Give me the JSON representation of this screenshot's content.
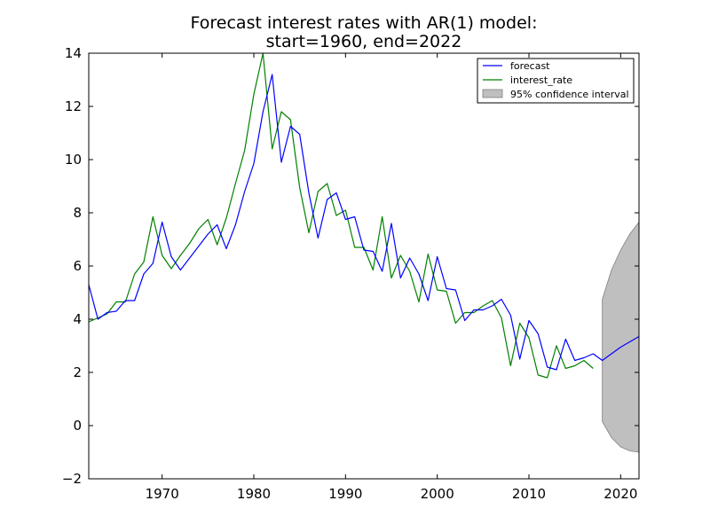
{
  "chart_data": {
    "type": "line",
    "title_lines": [
      "Forecast interest rates with AR(1) model:",
      "start=1960, end=2022"
    ],
    "xlabel": "",
    "ylabel": "",
    "xlim": [
      1962,
      2022
    ],
    "ylim": [
      -2,
      14
    ],
    "xticks": [
      1970,
      1980,
      1990,
      2000,
      2010,
      2020
    ],
    "yticks": [
      -2,
      0,
      2,
      4,
      6,
      8,
      10,
      12,
      14
    ],
    "ytick_labels": [
      "−2",
      "0",
      "2",
      "4",
      "6",
      "8",
      "10",
      "12",
      "14"
    ],
    "grid": false,
    "legend_position": "top-right",
    "series": [
      {
        "name": "forecast",
        "color": "#0000ff",
        "x": [
          1962,
          1963,
          1964,
          1965,
          1966,
          1967,
          1968,
          1969,
          1970,
          1971,
          1972,
          1973,
          1974,
          1975,
          1976,
          1977,
          1978,
          1979,
          1980,
          1981,
          1982,
          1983,
          1984,
          1985,
          1986,
          1987,
          1988,
          1989,
          1990,
          1991,
          1992,
          1993,
          1994,
          1995,
          1996,
          1997,
          1998,
          1999,
          2000,
          2001,
          2002,
          2003,
          2004,
          2005,
          2006,
          2007,
          2008,
          2009,
          2010,
          2011,
          2012,
          2013,
          2014,
          2015,
          2016,
          2017,
          2018,
          2019,
          2020,
          2021,
          2022
        ],
        "y": [
          5.3,
          4.0,
          4.25,
          4.3,
          4.7,
          4.7,
          5.7,
          6.1,
          7.65,
          6.35,
          5.85,
          6.3,
          6.75,
          7.2,
          7.55,
          6.65,
          7.55,
          8.8,
          9.85,
          11.8,
          13.2,
          9.9,
          11.25,
          10.95,
          8.75,
          7.05,
          8.5,
          8.75,
          7.75,
          7.85,
          6.6,
          6.55,
          5.8,
          7.6,
          5.55,
          6.3,
          5.7,
          4.7,
          6.35,
          5.15,
          5.1,
          3.95,
          4.35,
          4.35,
          4.5,
          4.75,
          4.15,
          2.5,
          3.95,
          3.45,
          2.2,
          2.1,
          3.25,
          2.45,
          2.55,
          2.7,
          2.45,
          2.7,
          2.95,
          3.15,
          3.35
        ]
      },
      {
        "name": "interest_rate",
        "color": "#008000",
        "x": [
          1962,
          1963,
          1964,
          1965,
          1966,
          1967,
          1968,
          1969,
          1970,
          1971,
          1972,
          1973,
          1974,
          1975,
          1976,
          1977,
          1978,
          1979,
          1980,
          1981,
          1982,
          1983,
          1984,
          1985,
          1986,
          1987,
          1988,
          1989,
          1990,
          1991,
          1992,
          1993,
          1994,
          1995,
          1996,
          1997,
          1998,
          1999,
          2000,
          2001,
          2002,
          2003,
          2004,
          2005,
          2006,
          2007,
          2008,
          2009,
          2010,
          2011,
          2012,
          2013,
          2014,
          2015,
          2016,
          2017
        ],
        "y": [
          3.9,
          4.05,
          4.2,
          4.65,
          4.65,
          5.7,
          6.15,
          7.85,
          6.4,
          5.9,
          6.4,
          6.85,
          7.4,
          7.75,
          6.8,
          7.8,
          9.1,
          10.35,
          12.45,
          14.0,
          10.4,
          11.8,
          11.5,
          8.95,
          7.25,
          8.8,
          9.1,
          7.9,
          8.1,
          6.7,
          6.7,
          5.85,
          7.85,
          5.55,
          6.4,
          5.8,
          4.65,
          6.45,
          5.1,
          5.05,
          3.85,
          4.25,
          4.25,
          4.5,
          4.7,
          4.05,
          2.25,
          3.85,
          3.3,
          1.9,
          1.8,
          3.0,
          2.15,
          2.25,
          2.45,
          2.15
        ]
      }
    ],
    "confidence_interval": {
      "name": "95% confidence interval",
      "color": "#bfbfbf",
      "edge_color": "#7f7f7f",
      "x": [
        2018,
        2019,
        2020,
        2021,
        2022
      ],
      "upper": [
        4.75,
        5.85,
        6.6,
        7.2,
        7.65
      ],
      "lower": [
        0.15,
        -0.45,
        -0.8,
        -0.95,
        -1.0
      ]
    }
  }
}
